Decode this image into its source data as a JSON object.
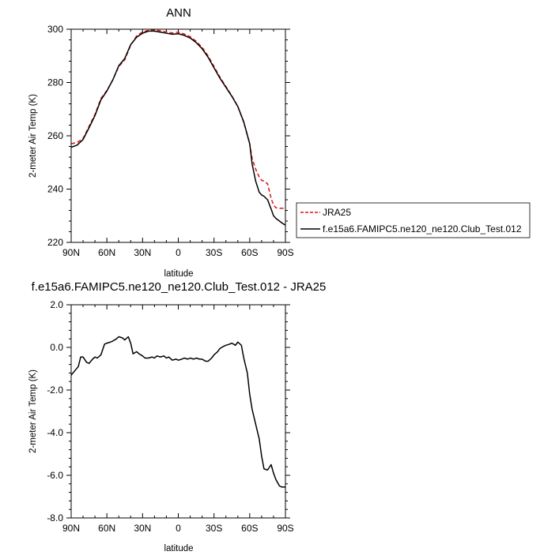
{
  "chart_data": [
    {
      "type": "line",
      "title": "ANN",
      "xlabel": "latitude",
      "ylabel": "2-meter Air Temp (K)",
      "x_tick_labels": [
        "90N",
        "60N",
        "30N",
        "0",
        "30S",
        "60S",
        "90S"
      ],
      "x_ticks": [
        90,
        60,
        30,
        0,
        -30,
        -60,
        -90
      ],
      "xlim": [
        90,
        -90
      ],
      "ylim": [
        220,
        300
      ],
      "y_ticks": [
        220,
        240,
        260,
        280,
        300
      ],
      "grid": false,
      "legend_placement": "right",
      "series": [
        {
          "name": "JRA25",
          "color": "#e01010",
          "dash": "dashed",
          "x": [
            90,
            85,
            80,
            75,
            70,
            65,
            60,
            55,
            50,
            45,
            40,
            35,
            30,
            25,
            20,
            15,
            10,
            5,
            0,
            -5,
            -10,
            -15,
            -20,
            -25,
            -30,
            -35,
            -40,
            -45,
            -50,
            -55,
            -60,
            -62,
            -65,
            -68,
            -70,
            -72,
            -75,
            -78,
            -80,
            -82,
            -85,
            -88,
            -90
          ],
          "y": [
            257.0,
            257.5,
            259.0,
            263.5,
            268.0,
            274.0,
            277.0,
            281.0,
            286.0,
            288.5,
            294.0,
            297.5,
            299.0,
            299.6,
            299.8,
            299.4,
            299.0,
            298.6,
            298.9,
            298.2,
            297.2,
            295.5,
            293.2,
            290.0,
            286.0,
            282.0,
            278.5,
            275.0,
            271.0,
            265.0,
            257.0,
            251.5,
            247.5,
            244.5,
            243.3,
            243.0,
            242.0,
            236.5,
            234.0,
            233.0,
            232.8,
            232.8,
            233.0
          ]
        },
        {
          "name": "f.e15a6.FAMIPC5.ne120_ne120.Club_Test.012",
          "color": "#000000",
          "dash": "solid",
          "x": [
            90,
            85,
            80,
            75,
            70,
            65,
            60,
            55,
            50,
            45,
            40,
            35,
            30,
            25,
            20,
            15,
            10,
            5,
            0,
            -5,
            -10,
            -15,
            -20,
            -25,
            -30,
            -35,
            -40,
            -45,
            -50,
            -55,
            -60,
            -62,
            -65,
            -68,
            -70,
            -72,
            -75,
            -78,
            -80,
            -82,
            -85,
            -88,
            -90
          ],
          "y": [
            255.7,
            256.5,
            258.6,
            263.0,
            267.6,
            273.5,
            276.8,
            281.0,
            286.3,
            289.0,
            294.2,
            297.0,
            298.5,
            299.3,
            299.3,
            298.9,
            298.5,
            298.1,
            298.3,
            297.7,
            296.7,
            295.0,
            292.7,
            289.5,
            285.5,
            281.6,
            278.2,
            274.8,
            271.0,
            265.2,
            257.0,
            249.5,
            243.0,
            238.8,
            237.8,
            237.3,
            236.0,
            232.5,
            230.0,
            229.0,
            228.0,
            227.0,
            226.5
          ]
        }
      ]
    },
    {
      "type": "line",
      "title": "f.e15a6.FAMIPC5.ne120_ne120.Club_Test.012 - JRA25",
      "xlabel": "latitude",
      "ylabel": "2-meter Air Temp (K)",
      "x_tick_labels": [
        "90N",
        "60N",
        "30N",
        "0",
        "30S",
        "60S",
        "90S"
      ],
      "x_ticks": [
        90,
        60,
        30,
        0,
        -30,
        -60,
        -90
      ],
      "xlim": [
        90,
        -90
      ],
      "ylim": [
        -8,
        2
      ],
      "y_ticks": [
        -8,
        -6,
        -4,
        -2,
        0,
        2
      ],
      "y_tick_labels": [
        "-8.0",
        "-6.0",
        "-4.0",
        "-2.0",
        "0.0",
        "2.0"
      ],
      "grid": false,
      "series": [
        {
          "color": "#000000",
          "dash": "solid",
          "x": [
            90,
            87,
            84,
            82,
            80,
            77,
            75,
            72,
            70,
            68,
            65,
            62,
            60,
            57,
            55,
            52,
            50,
            47,
            45,
            42,
            40,
            38,
            35,
            33,
            30,
            28,
            25,
            22,
            20,
            18,
            15,
            12,
            10,
            8,
            5,
            2,
            0,
            -3,
            -5,
            -8,
            -10,
            -13,
            -15,
            -18,
            -20,
            -23,
            -25,
            -28,
            -30,
            -33,
            -35,
            -38,
            -40,
            -43,
            -45,
            -48,
            -50,
            -53,
            -55,
            -58,
            -60,
            -62,
            -65,
            -68,
            -70,
            -72,
            -75,
            -78,
            -80,
            -82,
            -85,
            -87,
            -90
          ],
          "y": [
            -1.3,
            -1.1,
            -0.9,
            -0.45,
            -0.45,
            -0.7,
            -0.75,
            -0.55,
            -0.45,
            -0.5,
            -0.35,
            0.15,
            0.2,
            0.25,
            0.3,
            0.4,
            0.5,
            0.45,
            0.35,
            0.5,
            0.2,
            -0.3,
            -0.2,
            -0.3,
            -0.4,
            -0.5,
            -0.5,
            -0.45,
            -0.5,
            -0.4,
            -0.45,
            -0.4,
            -0.5,
            -0.45,
            -0.6,
            -0.55,
            -0.6,
            -0.55,
            -0.5,
            -0.55,
            -0.5,
            -0.55,
            -0.5,
            -0.55,
            -0.55,
            -0.65,
            -0.65,
            -0.5,
            -0.35,
            -0.2,
            -0.05,
            0.05,
            0.1,
            0.15,
            0.2,
            0.1,
            0.25,
            0.1,
            -0.5,
            -1.2,
            -2.2,
            -2.9,
            -3.6,
            -4.3,
            -5.1,
            -5.7,
            -5.75,
            -5.5,
            -5.9,
            -6.2,
            -6.5,
            -6.55,
            -6.55
          ]
        }
      ]
    }
  ]
}
